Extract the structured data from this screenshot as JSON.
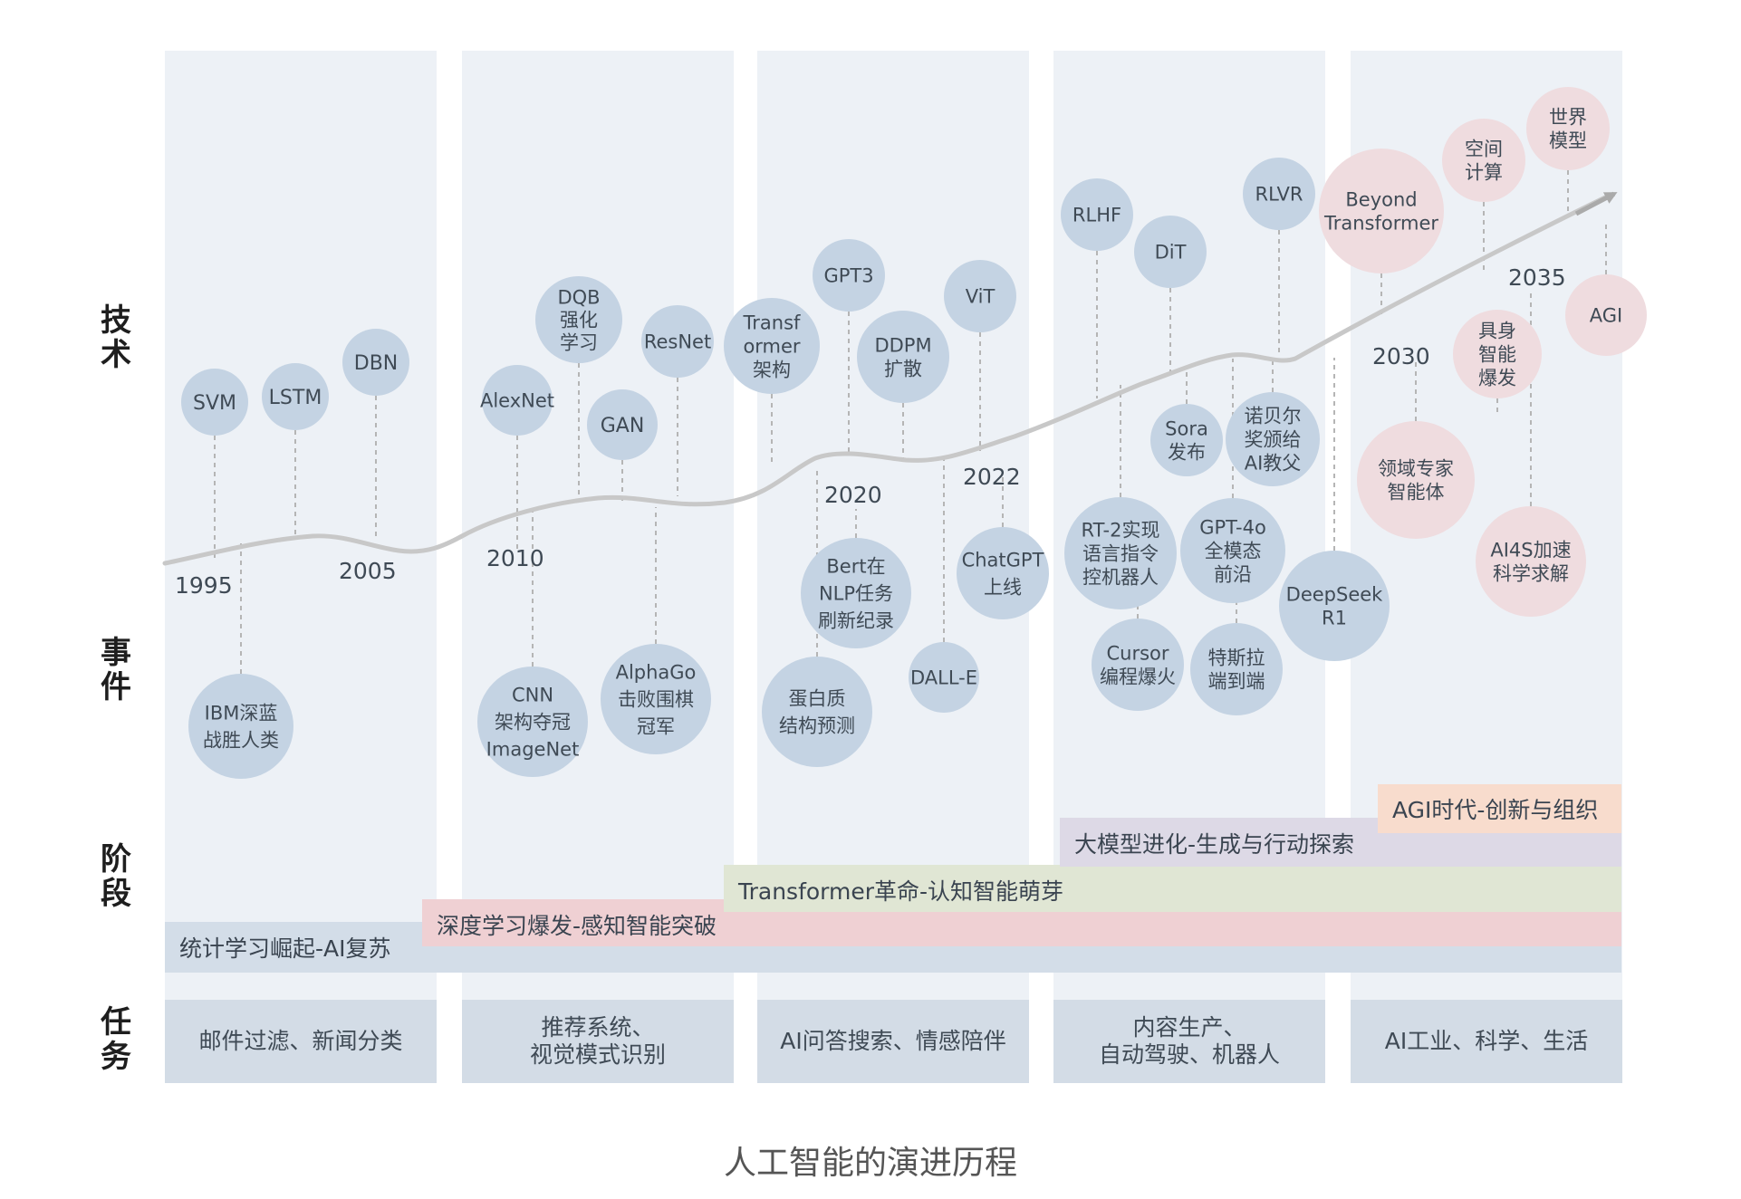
{
  "lane_labels": {
    "tech": "技\n术",
    "event": "事\n件",
    "stage": "阶\n段",
    "task": "任\n务"
  },
  "caption": "人工智能的演进历程",
  "years": [
    "1995",
    "2005",
    "2010",
    "2020",
    "2022",
    "2030",
    "2035"
  ],
  "tech_nodes": [
    {
      "id": "svm",
      "label": "SVM"
    },
    {
      "id": "lstm",
      "label": "LSTM"
    },
    {
      "id": "dbn",
      "label": "DBN"
    },
    {
      "id": "alexnet",
      "label": "AlexNet"
    },
    {
      "id": "dqb",
      "label": "DQB\n强化\n学习"
    },
    {
      "id": "gan",
      "label": "GAN"
    },
    {
      "id": "resnet",
      "label": "ResNet"
    },
    {
      "id": "transformer",
      "label": "Transf\normer\n架构"
    },
    {
      "id": "gpt3",
      "label": "GPT3"
    },
    {
      "id": "ddpm",
      "label": "DDPM\n扩散"
    },
    {
      "id": "vit",
      "label": "ViT"
    },
    {
      "id": "rlhf",
      "label": "RLHF"
    },
    {
      "id": "dit",
      "label": "DiT"
    },
    {
      "id": "rlvr",
      "label": "RLVR"
    },
    {
      "id": "beyond",
      "label": "Beyond\nTransformer"
    },
    {
      "id": "spatial",
      "label": "空间\n计算"
    },
    {
      "id": "world",
      "label": "世界\n模型"
    },
    {
      "id": "embodied",
      "label": "具身\n智能\n爆发"
    },
    {
      "id": "agi",
      "label": "AGI"
    }
  ],
  "event_nodes": [
    {
      "id": "ibm",
      "label": "IBM深蓝\n战胜人类"
    },
    {
      "id": "cnn",
      "label": "CNN\n架构夺冠\nImageNet"
    },
    {
      "id": "alphago",
      "label": "AlphaGo\n击败围棋\n冠军"
    },
    {
      "id": "bert",
      "label": "Bert在\nNLP任务\n刷新纪录"
    },
    {
      "id": "protein",
      "label": "蛋白质\n结构预测"
    },
    {
      "id": "dalle",
      "label": "DALL-E"
    },
    {
      "id": "chatgpt",
      "label": "ChatGPT\n上线"
    },
    {
      "id": "sora",
      "label": "Sora\n发布"
    },
    {
      "id": "nobel",
      "label": "诺贝尔\n奖颁给\nAI教父"
    },
    {
      "id": "rt2",
      "label": "RT-2实现\n语言指令\n控机器人"
    },
    {
      "id": "gpt4o",
      "label": "GPT-4o\n全模态\n前沿"
    },
    {
      "id": "cursor",
      "label": "Cursor\n编程爆火"
    },
    {
      "id": "tesla",
      "label": "特斯拉\n端到端"
    },
    {
      "id": "deepseek",
      "label": "DeepSeek\nR1"
    },
    {
      "id": "domain_agent",
      "label": "领域专家\n智能体"
    },
    {
      "id": "ai4s",
      "label": "AI4S加速\n科学求解"
    }
  ],
  "stages": [
    {
      "label": "统计学习崛起-AI复苏",
      "color": "#d3dde8"
    },
    {
      "label": "深度学习爆发-感知智能突破",
      "color": "#efd0d3"
    },
    {
      "label": "Transformer革命-认知智能萌芽",
      "color": "#e0e6d4"
    },
    {
      "label": "大模型进化-生成与行动探索",
      "color": "#ddd9e6"
    },
    {
      "label": "AGI时代-创新与组织",
      "color": "#f8dccd"
    }
  ],
  "tasks": [
    "邮件过滤、新闻分类",
    "推荐系统、\n视觉模式识别",
    "AI问答搜索、情感陪伴",
    "内容生产、\n自动驾驶、机器人",
    "AI工业、科学、生活"
  ],
  "colors": {
    "column_bg": "#edf1f6",
    "blue_node": "#c4d3e3",
    "pink_node": "#efdcdf",
    "curve": "#c6c6c6",
    "task_bg": "#d3dce6"
  }
}
